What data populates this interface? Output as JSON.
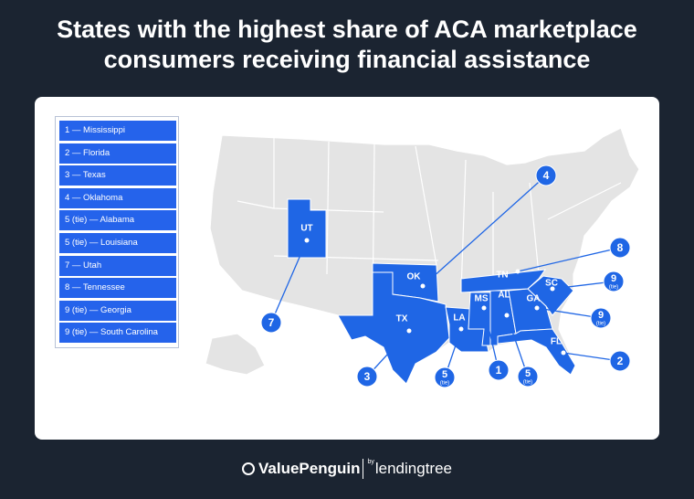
{
  "title": "States with the highest share of ACA marketplace consumers receiving financial assistance",
  "legend": [
    "1 — Mississippi",
    "2 — Florida",
    "3 — Texas",
    "4 — Oklahoma",
    "5 (tie) — Alabama",
    "5 (tie) — Louisiana",
    "7 — Utah",
    "8 — Tennessee",
    "9 (tie) — Georgia",
    "9 (tie) — South Carolina"
  ],
  "markers": [
    {
      "state": "UT",
      "rank": "7"
    },
    {
      "state": "OK",
      "rank": "4"
    },
    {
      "state": "TX",
      "rank": "3"
    },
    {
      "state": "LA",
      "rank": "5",
      "note": "(tie)"
    },
    {
      "state": "MS",
      "rank": "1"
    },
    {
      "state": "AL",
      "rank": "5",
      "note": "(tie)"
    },
    {
      "state": "FL",
      "rank": "2"
    },
    {
      "state": "GA",
      "rank": "9",
      "note": "(tie)"
    },
    {
      "state": "SC",
      "rank": "9",
      "note": "(tie)"
    },
    {
      "state": "TN",
      "rank": "8"
    }
  ],
  "footer": {
    "brand": "ValuePenguin",
    "by": "by",
    "partner": "lendingtree"
  }
}
